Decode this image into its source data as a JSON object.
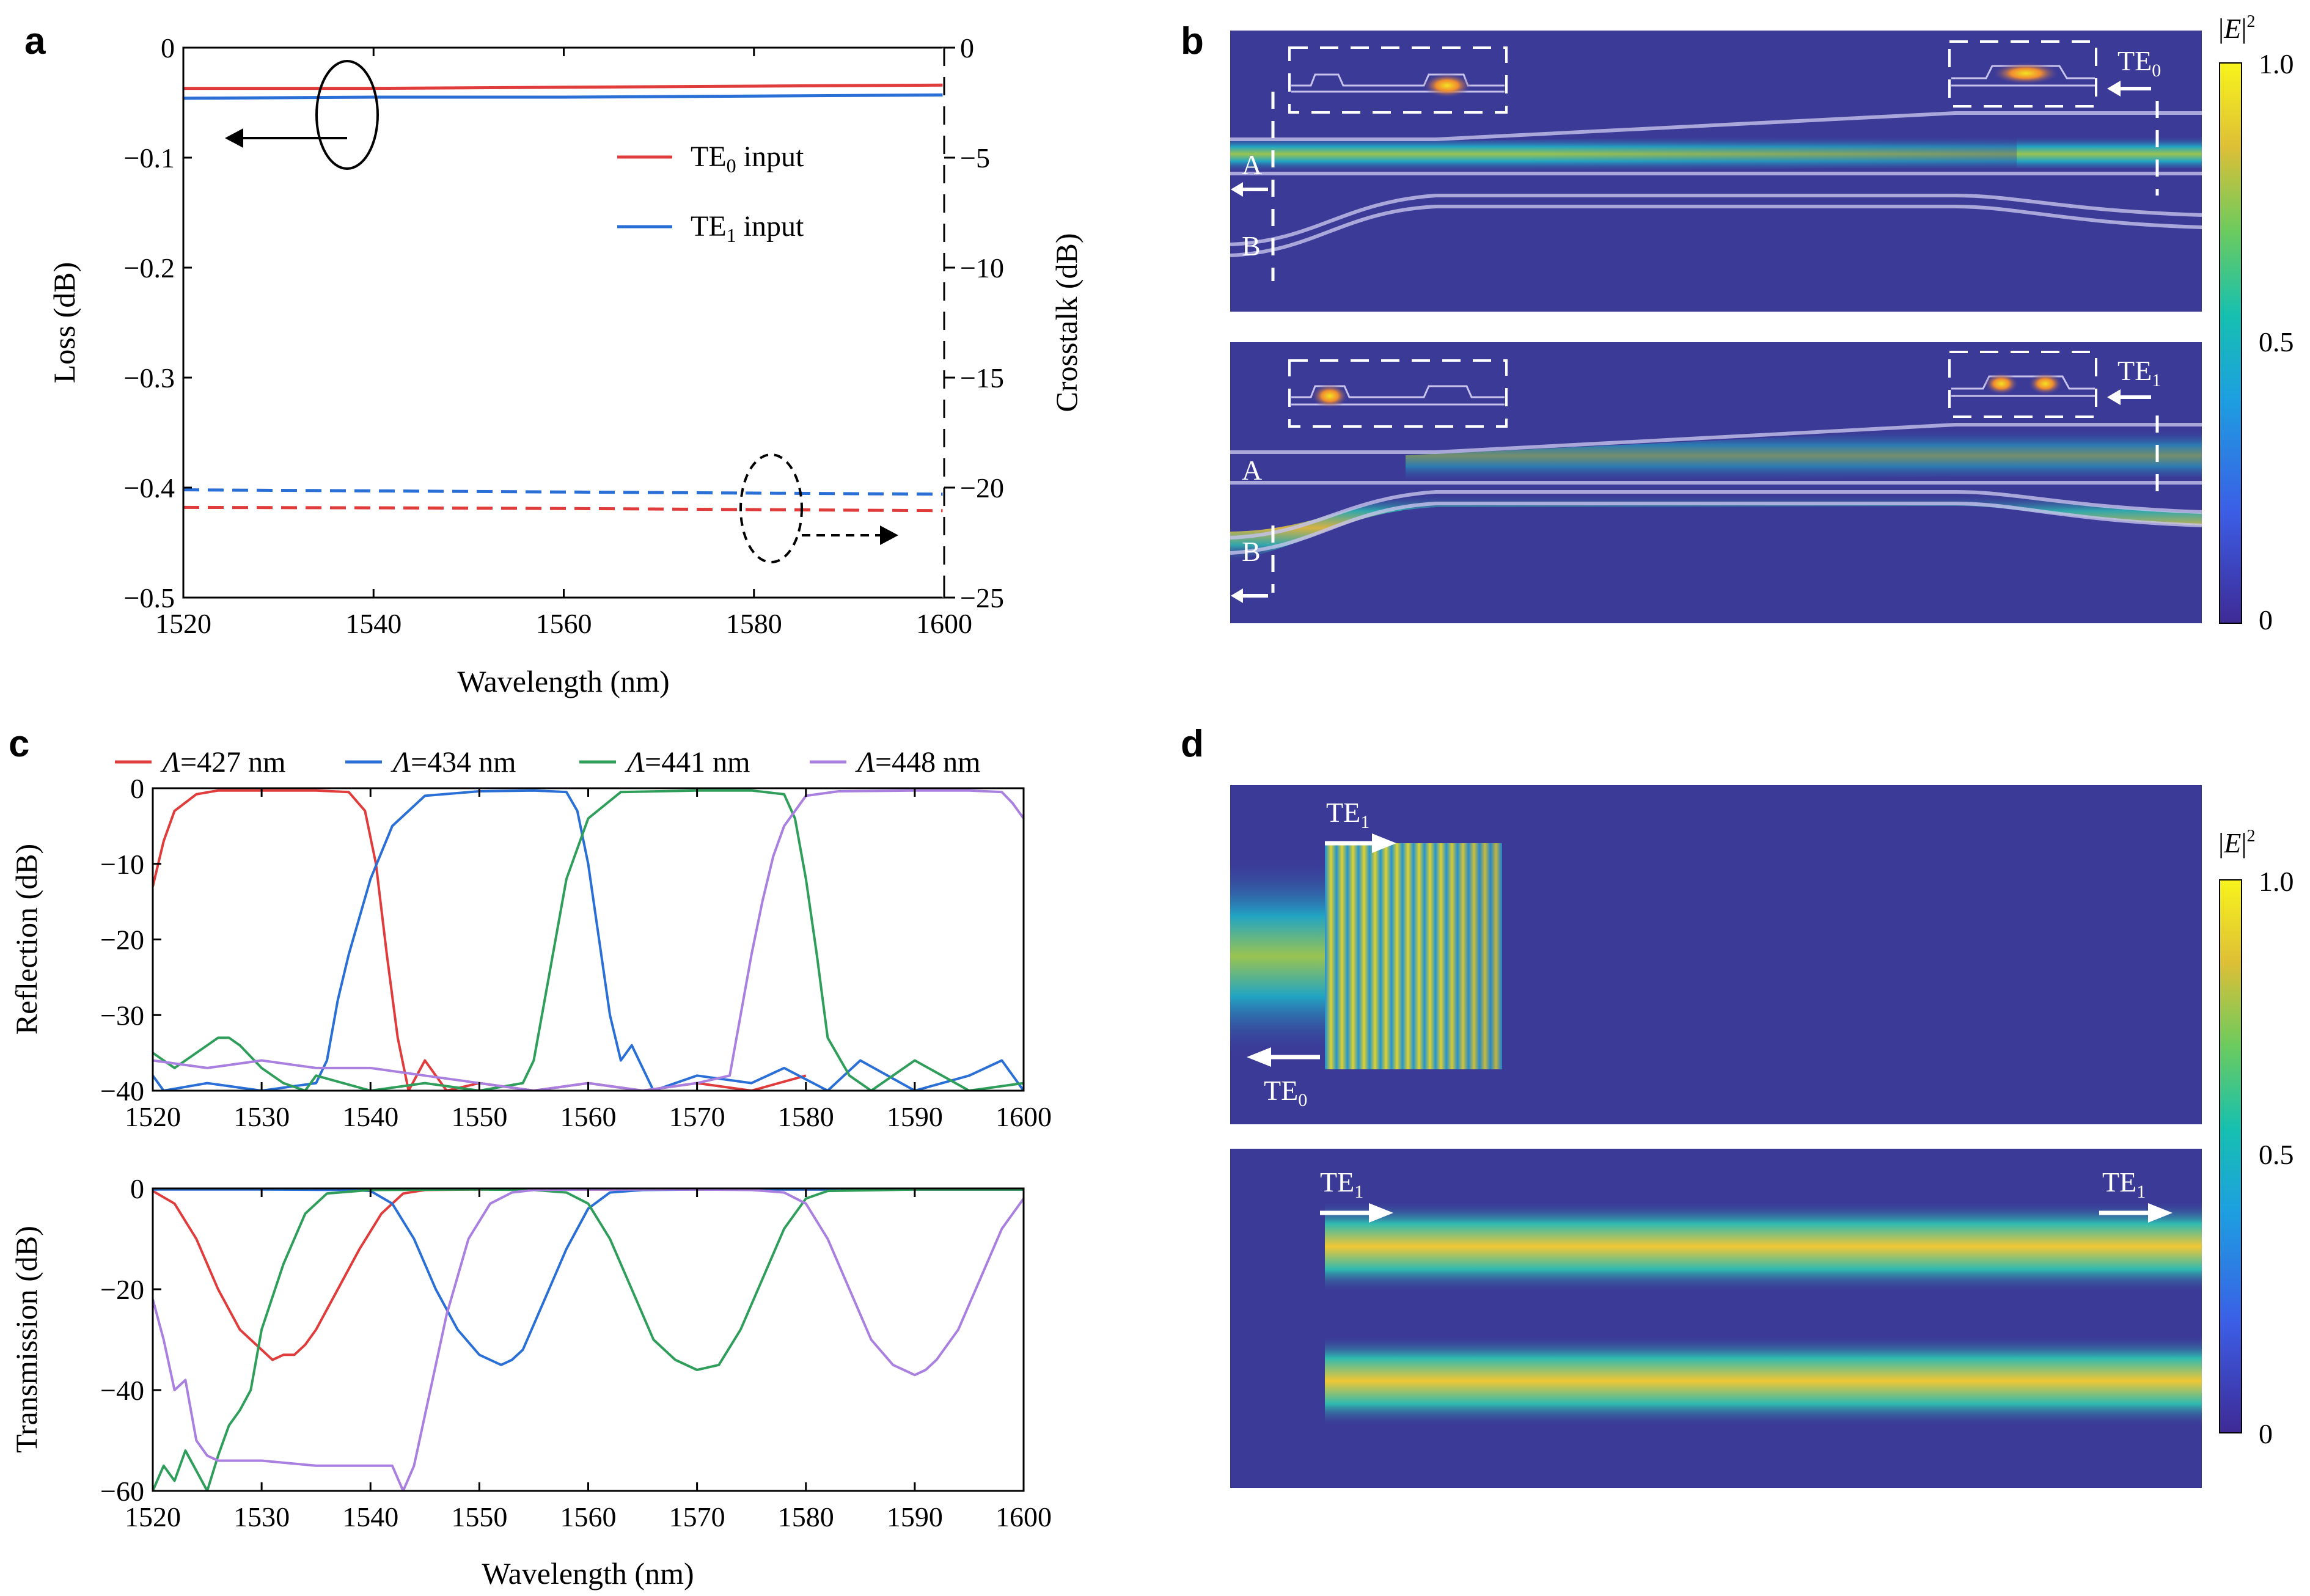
{
  "panels": {
    "a": "a",
    "b": "b",
    "c": "c",
    "d": "d"
  },
  "chart_data": [
    {
      "panel": "a",
      "type": "line",
      "xlabel": "Wavelength (nm)",
      "ylabel": "Loss (dB)",
      "ylabel_right": "Crosstalk (dB)",
      "xlim": [
        1520,
        1600
      ],
      "ylim": [
        -0.5,
        0
      ],
      "ylim_right": [
        -25,
        0
      ],
      "xticks": [
        1520,
        1540,
        1560,
        1580,
        1600
      ],
      "yticks": [
        0,
        -0.1,
        -0.2,
        -0.3,
        -0.4,
        -0.5
      ],
      "yticks_right": [
        0,
        -5,
        -10,
        -15,
        -20,
        -25
      ],
      "ytick_labels": [
        "0",
        "−0.1",
        "−0.2",
        "−0.3",
        "−0.4",
        "−0.5"
      ],
      "ytick_labels_right": [
        "0",
        "−5",
        "−10",
        "−15",
        "−20",
        "−25"
      ],
      "legend": {
        "placement": "top-right",
        "entries": [
          {
            "prefix": "TE",
            "sub": "0",
            "suffix": " input",
            "color": "#e03c3c"
          },
          {
            "prefix": "TE",
            "sub": "1",
            "suffix": " input",
            "color": "#2a6fd6"
          }
        ]
      },
      "series": [
        {
          "axis": "left",
          "style": "solid",
          "color": "#e03c3c",
          "x": [
            1520,
            1540,
            1560,
            1580,
            1600
          ],
          "y": [
            -0.037,
            -0.037,
            -0.036,
            -0.035,
            -0.034
          ]
        },
        {
          "axis": "left",
          "style": "solid",
          "color": "#2a6fd6",
          "x": [
            1520,
            1540,
            1560,
            1580,
            1600
          ],
          "y": [
            -0.046,
            -0.045,
            -0.045,
            -0.044,
            -0.043
          ]
        },
        {
          "axis": "right",
          "style": "dashed",
          "color": "#2a6fd6",
          "x": [
            1520,
            1540,
            1560,
            1580,
            1600
          ],
          "y": [
            -20.1,
            -20.15,
            -20.2,
            -20.25,
            -20.3
          ]
        },
        {
          "axis": "right",
          "style": "dashed",
          "color": "#e03c3c",
          "x": [
            1520,
            1540,
            1560,
            1580,
            1600
          ],
          "y": [
            -20.9,
            -20.92,
            -20.95,
            -21.0,
            -21.05
          ]
        }
      ]
    },
    {
      "panel": "c-top",
      "type": "line",
      "ylabel": "Reflection (dB)",
      "xlim": [
        1520,
        1600
      ],
      "ylim": [
        -40,
        0
      ],
      "xticks": [
        1520,
        1530,
        1540,
        1550,
        1560,
        1570,
        1580,
        1590,
        1600
      ],
      "yticks": [
        0,
        -10,
        -20,
        -30,
        -40
      ],
      "ytick_labels": [
        "0",
        "−10",
        "−20",
        "−30",
        "−40"
      ],
      "legend": {
        "placement": "top",
        "entries": [
          {
            "symbol": "Λ",
            "value": "=427 nm",
            "color": "#e03c3c"
          },
          {
            "symbol": "Λ",
            "value": "=434 nm",
            "color": "#2a6fd6"
          },
          {
            "symbol": "Λ",
            "value": "=441 nm",
            "color": "#2f9e5b"
          },
          {
            "symbol": "Λ",
            "value": "=448 nm",
            "color": "#a97fe0"
          }
        ]
      },
      "series": [
        {
          "name": "Λ=427 nm",
          "color": "#e03c3c",
          "x": [
            1520,
            1521,
            1522,
            1524,
            1526,
            1530,
            1535,
            1538,
            1539.5,
            1540.5,
            1541.5,
            1542.5,
            1543.5,
            1545,
            1547,
            1550,
            1555,
            1560,
            1565,
            1570,
            1575,
            1580
          ],
          "y": [
            -13,
            -7,
            -3,
            -0.8,
            -0.3,
            -0.3,
            -0.3,
            -0.5,
            -3,
            -10,
            -22,
            -33,
            -40,
            -36,
            -40,
            -39,
            -40,
            -39,
            -40,
            -39,
            -40,
            -38
          ]
        },
        {
          "name": "Λ=434 nm",
          "color": "#2a6fd6",
          "x": [
            1520,
            1521,
            1525,
            1530,
            1535,
            1536,
            1537,
            1538,
            1540,
            1542,
            1545,
            1550,
            1555,
            1558,
            1559,
            1560,
            1561,
            1562,
            1563,
            1564,
            1566,
            1570,
            1575,
            1578,
            1582,
            1585,
            1590,
            1595,
            1598,
            1600
          ],
          "y": [
            -38,
            -40,
            -39,
            -40,
            -39,
            -36,
            -28,
            -22,
            -12,
            -5,
            -1,
            -0.4,
            -0.3,
            -0.5,
            -3,
            -10,
            -20,
            -30,
            -36,
            -34,
            -40,
            -38,
            -39,
            -37,
            -40,
            -36,
            -40,
            -38,
            -36,
            -40
          ]
        },
        {
          "name": "Λ=441 nm",
          "color": "#2f9e5b",
          "x": [
            1520,
            1522,
            1524,
            1526,
            1527,
            1528,
            1530,
            1532,
            1534,
            1535,
            1540,
            1545,
            1550,
            1554,
            1555,
            1556,
            1557,
            1558,
            1560,
            1563,
            1570,
            1575,
            1578,
            1579,
            1580,
            1581,
            1582,
            1584,
            1586,
            1590,
            1595,
            1600
          ],
          "y": [
            -35,
            -37,
            -35,
            -33,
            -33,
            -34,
            -37,
            -39,
            -40,
            -38,
            -40,
            -39,
            -40,
            -39,
            -36,
            -28,
            -20,
            -12,
            -4,
            -0.5,
            -0.3,
            -0.3,
            -0.8,
            -4,
            -12,
            -22,
            -33,
            -38,
            -40,
            -36,
            -40,
            -39
          ]
        },
        {
          "name": "Λ=448 nm",
          "color": "#a97fe0",
          "x": [
            1520,
            1525,
            1530,
            1535,
            1540,
            1545,
            1550,
            1555,
            1560,
            1565,
            1570,
            1573,
            1574,
            1575,
            1576,
            1577,
            1578,
            1580,
            1583,
            1590,
            1595,
            1598,
            1599,
            1600
          ],
          "y": [
            -36,
            -37,
            -36,
            -37,
            -37,
            -38,
            -39,
            -40,
            -39,
            -40,
            -39,
            -38,
            -30,
            -22,
            -15,
            -9,
            -5,
            -1,
            -0.4,
            -0.3,
            -0.3,
            -0.5,
            -2,
            -4
          ]
        }
      ]
    },
    {
      "panel": "c-bottom",
      "type": "line",
      "xlabel": "Wavelength (nm)",
      "ylabel": "Transmission (dB)",
      "xlim": [
        1520,
        1600
      ],
      "ylim": [
        -60,
        0
      ],
      "xticks": [
        1520,
        1530,
        1540,
        1550,
        1560,
        1570,
        1580,
        1590,
        1600
      ],
      "yticks": [
        0,
        -20,
        -40,
        -60
      ],
      "ytick_labels": [
        "0",
        "−20",
        "−40",
        "−60"
      ],
      "series": [
        {
          "name": "Λ=427 nm",
          "color": "#e03c3c",
          "x": [
            1520,
            1522,
            1524,
            1526,
            1528,
            1530,
            1531,
            1532,
            1533,
            1534,
            1535,
            1537,
            1539,
            1541,
            1543,
            1545,
            1550,
            1560,
            1570,
            1580,
            1590,
            1600
          ],
          "y": [
            -0.5,
            -3,
            -10,
            -20,
            -28,
            -32,
            -34,
            -33,
            -33,
            -31,
            -28,
            -20,
            -12,
            -5,
            -1,
            -0.3,
            -0.2,
            -0.2,
            -0.2,
            -0.2,
            -0.2,
            -0.2
          ]
        },
        {
          "name": "Λ=434 nm",
          "color": "#2a6fd6",
          "x": [
            1520,
            1530,
            1538,
            1540,
            1542,
            1544,
            1546,
            1548,
            1550,
            1552,
            1553,
            1554,
            1556,
            1558,
            1560,
            1562,
            1565,
            1570,
            1580,
            1590,
            1600
          ],
          "y": [
            -0.2,
            -0.2,
            -0.3,
            -0.5,
            -3,
            -10,
            -20,
            -28,
            -33,
            -35,
            -34,
            -32,
            -22,
            -12,
            -4,
            -0.8,
            -0.3,
            -0.2,
            -0.2,
            -0.2,
            -0.2
          ]
        },
        {
          "name": "Λ=441 nm",
          "color": "#2f9e5b",
          "x": [
            1520,
            1521,
            1522,
            1523,
            1524,
            1525,
            1526,
            1527,
            1528,
            1529,
            1530,
            1532,
            1534,
            1536,
            1540,
            1550,
            1555,
            1558,
            1560,
            1562,
            1564,
            1566,
            1568,
            1570,
            1572,
            1574,
            1576,
            1578,
            1580,
            1582,
            1590,
            1600
          ],
          "y": [
            -60,
            -55,
            -58,
            -52,
            -56,
            -60,
            -53,
            -47,
            -44,
            -40,
            -28,
            -15,
            -5,
            -1,
            -0.3,
            -0.2,
            -0.3,
            -0.8,
            -3,
            -10,
            -20,
            -30,
            -34,
            -36,
            -35,
            -28,
            -18,
            -8,
            -2,
            -0.5,
            -0.2,
            -0.2
          ]
        },
        {
          "name": "Λ=448 nm",
          "color": "#a97fe0",
          "x": [
            1520,
            1521,
            1522,
            1523,
            1524,
            1525,
            1526,
            1530,
            1535,
            1540,
            1542,
            1543,
            1544,
            1545,
            1546,
            1547,
            1549,
            1551,
            1553,
            1555,
            1560,
            1570,
            1575,
            1578,
            1580,
            1582,
            1584,
            1586,
            1588,
            1590,
            1591,
            1592,
            1594,
            1596,
            1598,
            1600
          ],
          "y": [
            -22,
            -30,
            -40,
            -38,
            -50,
            -53,
            -54,
            -54,
            -55,
            -55,
            -55,
            -60,
            -55,
            -45,
            -35,
            -25,
            -10,
            -3,
            -0.8,
            -0.3,
            -0.2,
            -0.2,
            -0.3,
            -0.8,
            -3,
            -10,
            -20,
            -30,
            -35,
            -37,
            -36,
            -34,
            -28,
            -18,
            -8,
            -2
          ]
        }
      ]
    }
  ],
  "fields": {
    "colorbar_label_base": "E",
    "colorbar_label_sup": "2",
    "b_colorbar_ticks": [
      "1.0",
      "0.5",
      "0"
    ],
    "d_colorbar_ticks": [
      "1.0",
      "0.5",
      "0"
    ],
    "b_top": {
      "mode_label": "TE",
      "mode_sub": "0",
      "port_a": "A",
      "port_b": "B"
    },
    "b_bottom": {
      "mode_label": "TE",
      "mode_sub": "1",
      "port_a": "A",
      "port_b": "B"
    },
    "d_top": {
      "in_label": "TE",
      "in_sub": "1",
      "out_label": "TE",
      "out_sub": "0"
    },
    "d_bottom": {
      "in_label": "TE",
      "in_sub": "1",
      "out_label": "TE",
      "out_sub": "1"
    }
  },
  "colors": {
    "field_background": "#3b3a97",
    "field_peak": "#f3e221"
  }
}
